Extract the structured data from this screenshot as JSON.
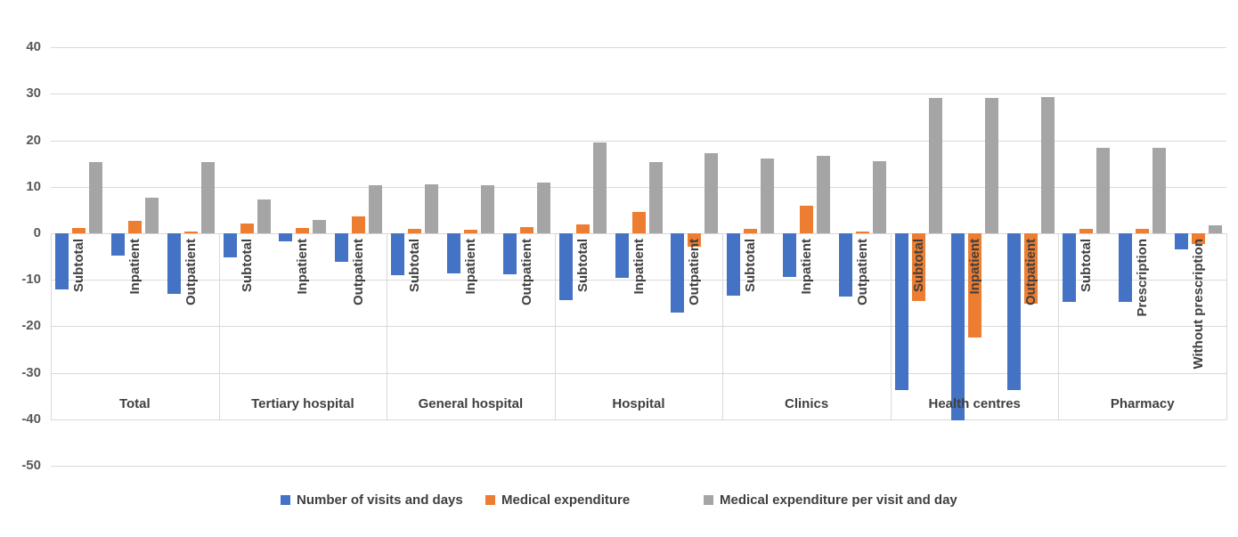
{
  "chart_data": {
    "type": "bar",
    "title": "",
    "x_axis_levels": 2,
    "y_axis": {
      "min": -50,
      "max": 40,
      "tick_step": 10,
      "ticks": [
        40,
        30,
        20,
        10,
        0,
        -10,
        -20,
        -30,
        -40,
        -50
      ],
      "grid": true
    },
    "legend_position": "bottom",
    "series": [
      {
        "name": "Number of visits and days",
        "color": "#4472C4"
      },
      {
        "name": "Medical expenditure",
        "color": "#ED7D31"
      },
      {
        "name": "Medical expenditure per visit and day",
        "color": "#A5A5A5"
      }
    ],
    "groups": [
      {
        "label": "Total",
        "items": [
          {
            "label": "Subtotal",
            "values": [
              -12.0,
              1.2,
              15.3
            ]
          },
          {
            "label": "Inpatient",
            "values": [
              -4.8,
              2.7,
              7.7
            ]
          },
          {
            "label": "Outpatient",
            "values": [
              -13.0,
              0.3,
              15.3
            ]
          }
        ]
      },
      {
        "label": "Tertiary hospital",
        "items": [
          {
            "label": "Subtotal",
            "values": [
              -5.1,
              2.1,
              7.2
            ]
          },
          {
            "label": "Inpatient",
            "values": [
              -1.7,
              1.2,
              2.9
            ]
          },
          {
            "label": "Outpatient",
            "values": [
              -6.2,
              3.7,
              10.3
            ]
          }
        ]
      },
      {
        "label": "General hospital",
        "items": [
          {
            "label": "Subtotal",
            "values": [
              -8.9,
              0.9,
              10.6
            ]
          },
          {
            "label": "Inpatient",
            "values": [
              -8.6,
              0.7,
              10.3
            ]
          },
          {
            "label": "Outpatient",
            "values": [
              -8.8,
              1.3,
              11.0
            ]
          }
        ]
      },
      {
        "label": "Hospital",
        "items": [
          {
            "label": "Subtotal",
            "values": [
              -14.4,
              1.9,
              19.5
            ]
          },
          {
            "label": "Inpatient",
            "values": [
              -9.5,
              4.6,
              15.3
            ]
          },
          {
            "label": "Outpatient",
            "values": [
              -17.0,
              -2.9,
              17.2
            ]
          }
        ]
      },
      {
        "label": "Clinics",
        "items": [
          {
            "label": "Subtotal",
            "values": [
              -13.4,
              0.9,
              16.1
            ]
          },
          {
            "label": "Inpatient",
            "values": [
              -9.4,
              5.9,
              16.7
            ]
          },
          {
            "label": "Outpatient",
            "values": [
              -13.5,
              0.4,
              15.5
            ]
          }
        ]
      },
      {
        "label": "Health centres",
        "items": [
          {
            "label": "Subtotal",
            "values": [
              -33.8,
              -14.6,
              29.1
            ]
          },
          {
            "label": "Inpatient",
            "values": [
              -40.3,
              -22.4,
              29.1
            ]
          },
          {
            "label": "Outpatient",
            "values": [
              -33.8,
              -15.2,
              29.4
            ]
          }
        ]
      },
      {
        "label": "Pharmacy",
        "items": [
          {
            "label": "Subtotal",
            "values": [
              -14.8,
              1.0,
              18.4
            ]
          },
          {
            "label": "Prescription",
            "values": [
              -14.8,
              1.0,
              18.4
            ]
          },
          {
            "label": "Without prescription",
            "values": [
              -3.5,
              -2.2,
              1.8
            ]
          }
        ]
      }
    ],
    "style_colors": {
      "gridline": "#D9D9D9",
      "tick_label": "#595959",
      "category_label": "#404040"
    }
  }
}
